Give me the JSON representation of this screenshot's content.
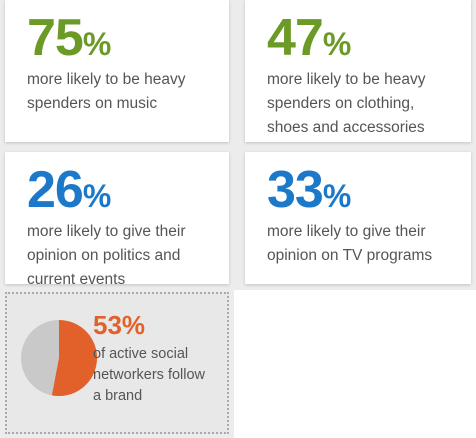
{
  "cards": [
    {
      "stat": "75",
      "unit": "%",
      "color": "#6b9a26",
      "lines": [
        "more likely to be heavy",
        "spenders on music"
      ]
    },
    {
      "stat": "47",
      "unit": "%",
      "color": "#6b9a26",
      "lines": [
        "more likely to be heavy",
        "spenders on clothing,",
        "shoes and accessories"
      ]
    },
    {
      "stat": "26",
      "unit": "%",
      "color": "#1c78c8",
      "lines": [
        "more likely to give their",
        "opinion on politics and",
        "current events"
      ]
    },
    {
      "stat": "33",
      "unit": "%",
      "color": "#1c78c8",
      "lines": [
        "more likely to give their",
        "opinion on TV programs"
      ]
    }
  ],
  "pie_card": {
    "value": 53,
    "unit": "%",
    "color": "#e2612a",
    "rest_color": "#c9c9c9",
    "lines": [
      "of active social",
      "networkers follow",
      "a brand"
    ]
  }
}
